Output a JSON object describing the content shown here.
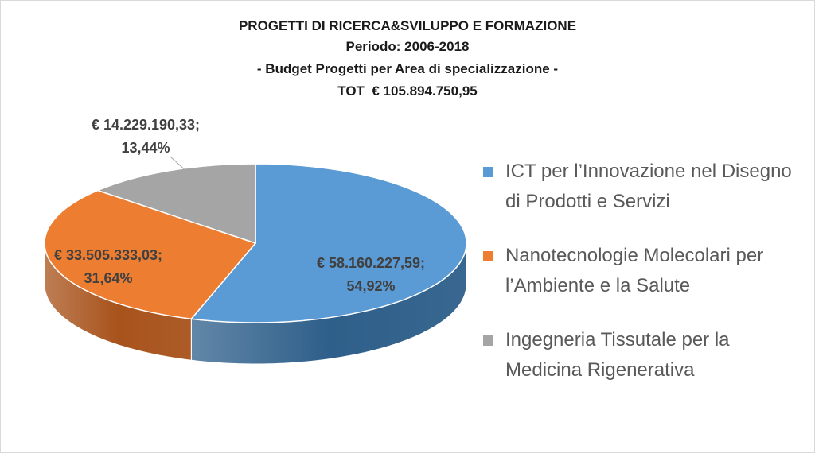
{
  "title_lines": [
    "PROGETTI DI RICERCA&SVILUPPO E FORMAZIONE",
    "Periodo: 2006-2018",
    "- Budget Progetti per Area di specializzazione -",
    "TOT  € 105.894.750,95"
  ],
  "chart_data": {
    "type": "pie",
    "style": "3d",
    "legend_position": "right",
    "title": "PROGETTI DI RICERCA&SVILUPPO E FORMAZIONE",
    "subtitle": [
      "Periodo: 2006-2018",
      "- Budget Progetti per Area di specializzazione -",
      "TOT  € 105.894.750,95"
    ],
    "total": 105894750.95,
    "slices": [
      {
        "name": "ICT per l’Innovazione nel Disegno di Prodotti e Servizi",
        "value": 58160227.59,
        "value_label": "€ 58.160.227,59;",
        "percent": 54.92,
        "percent_label": "54,92%",
        "color": "#5B9BD5",
        "side_color": "#2E5F8A"
      },
      {
        "name": "Nanotecnologie Molecolari per l’Ambiente e la Salute",
        "value": 33505333.03,
        "value_label": "€ 33.505.333,03;",
        "percent": 31.64,
        "percent_label": "31,64%",
        "color": "#ED7D31",
        "side_color": "#A8531C"
      },
      {
        "name": "Ingegneria Tissutale per la Medicina Rigenerativa",
        "value": 14229190.33,
        "value_label": "€ 14.229.190,33;",
        "percent": 13.44,
        "percent_label": "13,44%",
        "color": "#A5A5A5",
        "side_color": "#6E6E6E"
      }
    ]
  }
}
